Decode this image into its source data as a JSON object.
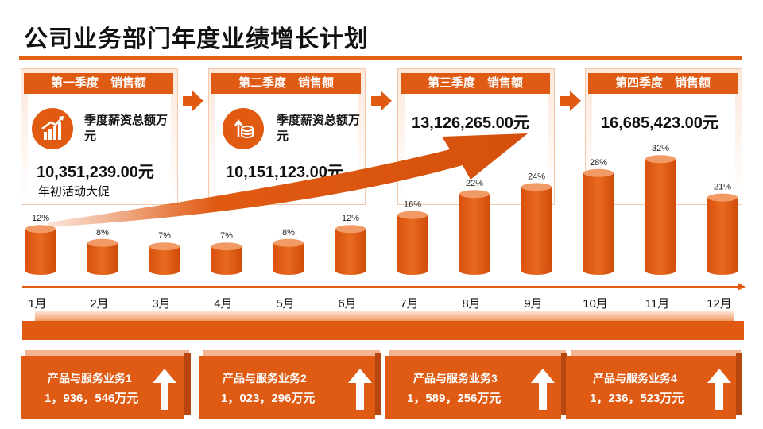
{
  "title": "公司业务部门年度业绩增长计划",
  "quarters": [
    {
      "header": "第一季度　销售额",
      "metric_label": "季度薪资总额万元",
      "amount": "10,351,239.00元",
      "note": "年初活动大促",
      "icon": "rising-bars-icon"
    },
    {
      "header": "第二季度　销售额",
      "metric_label": "季度薪资总额万元",
      "amount": "10,151,123.00元",
      "icon": "coins-growth-icon"
    },
    {
      "header": "第三季度　销售额",
      "amount": "13,126,265.00元"
    },
    {
      "header": "第四季度　销售额",
      "amount": "16,685,423.00元"
    }
  ],
  "chart_data": {
    "type": "bar",
    "categories": [
      "1月",
      "2月",
      "3月",
      "4月",
      "5月",
      "6月",
      "7月",
      "8月",
      "9月",
      "10月",
      "11月",
      "12月"
    ],
    "values": [
      12,
      8,
      7,
      7,
      8,
      12,
      16,
      22,
      24,
      28,
      32,
      21
    ],
    "value_labels": [
      "12%",
      "8%",
      "7%",
      "7%",
      "8%",
      "12%",
      "16%",
      "22%",
      "24%",
      "28%",
      "32%",
      "21%"
    ],
    "unit": "%",
    "title": "",
    "xlabel": "",
    "ylabel": "",
    "grid": false,
    "bar_style": "cylinder",
    "color": "#E05A12"
  },
  "cards": [
    {
      "label": "产品与服务业务1",
      "value": "1，936，546万元",
      "icon": "up-arrow-icon"
    },
    {
      "label": "产品与服务业务2",
      "value": "1，023，296万元",
      "icon": "up-arrow-icon"
    },
    {
      "label": "产品与服务业务3",
      "value": "1，589，256万元",
      "icon": "up-arrow-icon"
    },
    {
      "label": "产品与服务业务4",
      "value": "1，236，523万元",
      "icon": "up-arrow-icon"
    }
  ],
  "colors": {
    "accent": "#E05A12",
    "accent_light": "#F4B491",
    "accent_dark": "#B74610"
  }
}
